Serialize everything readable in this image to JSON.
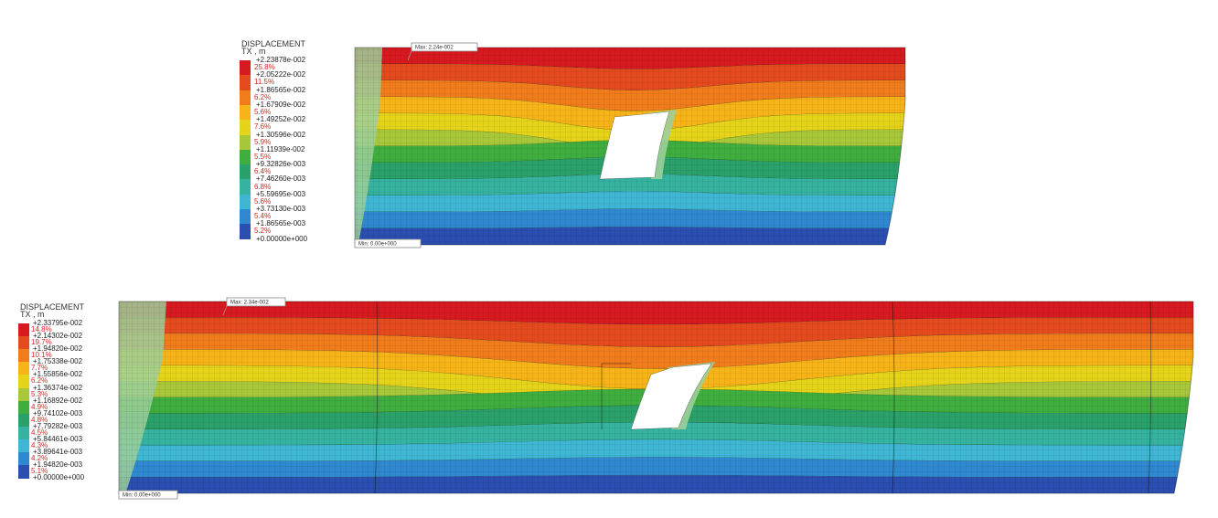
{
  "panels": [
    {
      "name": "top",
      "legend": {
        "title": "DISPLACEMENT",
        "subtitle": "TX , m",
        "colors": [
          "#d71920",
          "#e44a1e",
          "#f07c1c",
          "#f7b418",
          "#e6d41a",
          "#a8c83a",
          "#3fae3f",
          "#2aa06a",
          "#35b2a0",
          "#3fb6d4",
          "#2f88d0",
          "#2a4fb0"
        ],
        "percents": [
          "25.8%",
          "11.5%",
          "6.2%",
          "5.6%",
          "7.6%",
          "5.9%",
          "5.5%",
          "6.4%",
          "6.8%",
          "5.6%",
          "5.4%",
          "5.2%"
        ],
        "values": [
          "+2.23878e-002",
          "+2.05222e-002",
          "+1.86565e-002",
          "+1.67909e-002",
          "+1.49252e-002",
          "+1.30596e-002",
          "+1.11939e-002",
          "+9.32826e-003",
          "+7.46260e-003",
          "+5.59695e-003",
          "+3.73130e-003",
          "+1.86565e-003",
          "+0.00000e+000"
        ]
      },
      "max_label": "Max: 2.24e-002",
      "min_label": "Min: 0.00e+000"
    },
    {
      "name": "bottom",
      "legend": {
        "title": "DISPLACEMENT",
        "subtitle": "TX , m",
        "colors": [
          "#d71920",
          "#e44a1e",
          "#f07c1c",
          "#f7b418",
          "#e6d41a",
          "#a8c83a",
          "#3fae3f",
          "#2aa06a",
          "#35b2a0",
          "#3fb6d4",
          "#2f88d0",
          "#2a4fb0"
        ],
        "percents": [
          "14.8%",
          "19.7%",
          "10.1%",
          "7.7%",
          "6.2%",
          "5.3%",
          "4.9%",
          "4.8%",
          "4.5%",
          "4.3%",
          "4.2%",
          "5.1%"
        ],
        "values": [
          "+2.33795e-002",
          "+2.14302e-002",
          "+1.94820e-002",
          "+1.75338e-002",
          "+1.55856e-002",
          "+1.36374e-002",
          "+1.16892e-002",
          "+9.74102e-003",
          "+7.79282e-003",
          "+5.84461e-003",
          "+3.89641e-003",
          "+1.94820e-003",
          "+0.00000e+000"
        ]
      },
      "max_label": "Max: 2.34e-002",
      "min_label": "Min: 0.00e+000"
    }
  ]
}
